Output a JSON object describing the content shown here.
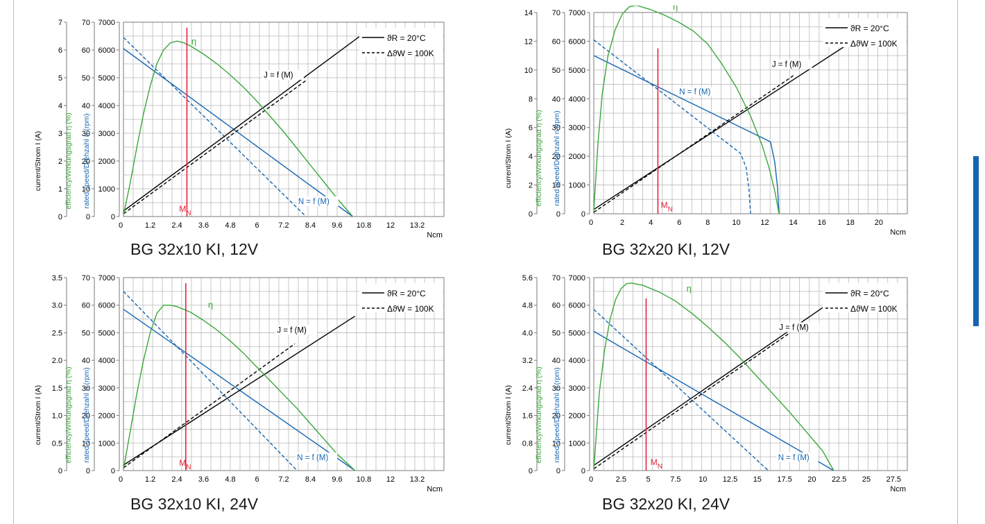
{
  "colors": {
    "current": "#000000",
    "speed": "#1565b3",
    "efficiency": "#3aa63a",
    "nominal_torque": "#e8213a",
    "grid": "#b9b9b9",
    "accent": "#1565b3"
  },
  "chart_data": [
    {
      "type": "line",
      "caption": "BG 32x10 KI, 12V",
      "xunit": "Ncm",
      "xlim": [
        0,
        14.4
      ],
      "xticks": [
        "1.2",
        "2.4",
        "3.6",
        "4.8",
        "6",
        "7.2",
        "8.4",
        "9.6",
        "10.8",
        "12",
        "13.2"
      ],
      "xtick_values": [
        1.2,
        2.4,
        3.6,
        4.8,
        6,
        7.2,
        8.4,
        9.6,
        10.8,
        12,
        13.2
      ],
      "y_current": {
        "label": "current/Strom I (A)",
        "ticks": [
          "0",
          "1",
          "2",
          "3",
          "4",
          "5",
          "6",
          "7"
        ],
        "max": 7
      },
      "y_eff": {
        "label": "efficiency/Wirkungsgrad η  (%)",
        "ticks": [
          "0",
          "10",
          "20",
          "30",
          "40",
          "50",
          "60",
          "70"
        ],
        "max": 70
      },
      "y_speed": {
        "label": "rated speed/Drehzahl n (rpm)",
        "ticks": [
          "0",
          "1000",
          "2000",
          "3000",
          "4000",
          "5000",
          "6000",
          "7000"
        ],
        "max": 7000
      },
      "legend": {
        "solid": "ϑR = 20°C",
        "dashed": "ΔϑW = 100K"
      },
      "labels": {
        "current": "J = f (M)",
        "speed": "N = f (M)",
        "efficiency": "η",
        "nominal": "MN"
      },
      "label_pos": {
        "current": [
          6.3,
          5000
        ],
        "speed": [
          7.85,
          450
        ],
        "efficiency": [
          3.05,
          6200
        ],
        "nominal": [
          2.5,
          180
        ]
      },
      "nominal_torque": {
        "x": 2.85,
        "top": 6800
      },
      "series": [
        {
          "key": "speed",
          "style": "solid",
          "points": [
            [
              0,
              6050
            ],
            [
              10.3,
              0
            ]
          ]
        },
        {
          "key": "speed",
          "style": "dashed",
          "points": [
            [
              0,
              6450
            ],
            [
              8.2,
              0
            ]
          ]
        },
        {
          "key": "current",
          "style": "solid",
          "points": [
            [
              0,
              0.2
            ],
            [
              10.8,
              6.6
            ]
          ]
        },
        {
          "key": "current",
          "style": "dashed",
          "points": [
            [
              0,
              0.1
            ],
            [
              8.2,
              4.9
            ]
          ]
        },
        {
          "key": "efficiency",
          "style": "solid",
          "points": [
            [
              0,
              0.5
            ],
            [
              0.3,
              12
            ],
            [
              0.6,
              25
            ],
            [
              0.9,
              37
            ],
            [
              1.2,
              47
            ],
            [
              1.5,
              55
            ],
            [
              1.8,
              60
            ],
            [
              2.1,
              62.5
            ],
            [
              2.4,
              63.2
            ],
            [
              2.7,
              62.6
            ],
            [
              3.0,
              61.5
            ],
            [
              3.6,
              58.5
            ],
            [
              4.2,
              55
            ],
            [
              4.8,
              51
            ],
            [
              5.4,
              46.5
            ],
            [
              6.0,
              41.5
            ],
            [
              6.6,
              36
            ],
            [
              7.2,
              30.5
            ],
            [
              7.8,
              24.5
            ],
            [
              8.4,
              18.5
            ],
            [
              9.0,
              12.5
            ],
            [
              9.6,
              6.5
            ],
            [
              10.3,
              0
            ]
          ]
        }
      ]
    },
    {
      "type": "line",
      "caption": "BG 32x20 KI, 12V",
      "xunit": "Ncm",
      "xlim": [
        0,
        22
      ],
      "xticks": [
        "2",
        "4",
        "6",
        "8",
        "10",
        "12",
        "14",
        "16",
        "18",
        "20"
      ],
      "xtick_values": [
        2,
        4,
        6,
        8,
        10,
        12,
        14,
        16,
        18,
        20
      ],
      "y_current": {
        "label": "current/Strom I (A)",
        "ticks": [
          "0",
          "2",
          "4",
          "6",
          "8",
          "10",
          "12",
          "14"
        ],
        "max": 14
      },
      "y_eff": {
        "label": "efficiency/Wirkungsgrad η  (%)",
        "ticks": [
          "0",
          "10",
          "20",
          "30",
          "40",
          "50",
          "60",
          "70"
        ],
        "max": 70
      },
      "y_speed": {
        "label": "rated speed/Drehzahl n (rpm)",
        "ticks": [
          "0",
          "1000",
          "2000",
          "3000",
          "4000",
          "5000",
          "6000",
          "7000"
        ],
        "max": 7000
      },
      "legend": {
        "solid": "ϑR = 20°C",
        "dashed": "ΔϑW = 100K"
      },
      "labels": {
        "current": "J = f (M)",
        "speed": "N = f (M)",
        "efficiency": "η",
        "nominal": "MN"
      },
      "label_pos": {
        "current": [
          12.5,
          5100
        ],
        "speed": [
          6,
          4150
        ],
        "efficiency": [
          5.55,
          7100
        ],
        "nominal": [
          4.7,
          200
        ]
      },
      "nominal_torque": {
        "x": 4.5,
        "top": 5750
      },
      "series": [
        {
          "key": "speed",
          "style": "solid",
          "points": [
            [
              0,
              5500
            ],
            [
              12.4,
              2500
            ],
            [
              12.7,
              1800
            ],
            [
              12.9,
              900
            ],
            [
              13,
              0
            ]
          ]
        },
        {
          "key": "speed",
          "style": "dashed",
          "points": [
            [
              0,
              6050
            ],
            [
              10.3,
              2100
            ],
            [
              10.7,
              1600
            ],
            [
              10.9,
              800
            ],
            [
              11,
              0
            ]
          ]
        },
        {
          "key": "current",
          "style": "solid",
          "points": [
            [
              0,
              0.3
            ],
            [
              18,
              11.9
            ]
          ]
        },
        {
          "key": "current",
          "style": "dashed",
          "points": [
            [
              0,
              0.1
            ],
            [
              14,
              9.6
            ]
          ]
        },
        {
          "key": "efficiency",
          "style": "solid",
          "points": [
            [
              0,
              1
            ],
            [
              0.3,
              25
            ],
            [
              0.6,
              42
            ],
            [
              1.0,
              55
            ],
            [
              1.5,
              64
            ],
            [
              2.0,
              69.5
            ],
            [
              2.5,
              72
            ],
            [
              3.0,
              72.5
            ],
            [
              4.0,
              71
            ],
            [
              5.0,
              69
            ],
            [
              6.0,
              66.5
            ],
            [
              7.0,
              63.5
            ],
            [
              8.0,
              59
            ],
            [
              9.0,
              52
            ],
            [
              10.0,
              44
            ],
            [
              11.0,
              34
            ],
            [
              11.8,
              24
            ],
            [
              12.3,
              16
            ],
            [
              12.7,
              8
            ],
            [
              13.0,
              0
            ]
          ]
        }
      ]
    },
    {
      "type": "line",
      "caption": "BG 32x10 KI, 24V",
      "xunit": "Ncm",
      "xlim": [
        0,
        14.4
      ],
      "xticks": [
        "1.2",
        "2.4",
        "3.6",
        "4.8",
        "6",
        "7.2",
        "8.4",
        "9.6",
        "10.8",
        "12",
        "13.2"
      ],
      "xtick_values": [
        1.2,
        2.4,
        3.6,
        4.8,
        6,
        7.2,
        8.4,
        9.6,
        10.8,
        12,
        13.2
      ],
      "y_current": {
        "label": "current/Strom I (A)",
        "ticks": [
          "0",
          "0.5",
          "1.0",
          "1.5",
          "2.0",
          "2.5",
          "3.0",
          "3.5"
        ],
        "max": 3.5
      },
      "y_eff": {
        "label": "efficiency/Wirkungsgrad η  (%)",
        "ticks": [
          "0",
          "10",
          "20",
          "30",
          "40",
          "50",
          "60",
          "70"
        ],
        "max": 70
      },
      "y_speed": {
        "label": "rated speed/Drehzahl n (rpm)",
        "ticks": [
          "0",
          "1000",
          "2000",
          "3000",
          "4000",
          "5000",
          "6000",
          "7000"
        ],
        "max": 7000
      },
      "legend": {
        "solid": "ϑR = 20°C",
        "dashed": "ΔϑW = 100K"
      },
      "labels": {
        "current": "J = f (M)",
        "speed": "N = f (M)",
        "efficiency": "η",
        "nominal": "MN"
      },
      "label_pos": {
        "current": [
          6.9,
          5000
        ],
        "speed": [
          7.8,
          380
        ],
        "efficiency": [
          3.8,
          5900
        ],
        "nominal": [
          2.5,
          180
        ]
      },
      "nominal_torque": {
        "x": 2.8,
        "top": 6800
      },
      "series": [
        {
          "key": "speed",
          "style": "solid",
          "points": [
            [
              0,
              5850
            ],
            [
              10.4,
              0
            ]
          ]
        },
        {
          "key": "speed",
          "style": "dashed",
          "points": [
            [
              0,
              6500
            ],
            [
              7.8,
              0
            ]
          ]
        },
        {
          "key": "current",
          "style": "solid",
          "points": [
            [
              0,
              0.1
            ],
            [
              10.4,
              2.8
            ]
          ]
        },
        {
          "key": "current",
          "style": "dashed",
          "points": [
            [
              0,
              0.05
            ],
            [
              7.7,
              2.3
            ]
          ]
        },
        {
          "key": "efficiency",
          "style": "solid",
          "points": [
            [
              0,
              0.5
            ],
            [
              0.3,
              14
            ],
            [
              0.6,
              28
            ],
            [
              0.9,
              40
            ],
            [
              1.2,
              50
            ],
            [
              1.5,
              57
            ],
            [
              1.8,
              60
            ],
            [
              2.1,
              60
            ],
            [
              2.4,
              59.5
            ],
            [
              3.0,
              57.5
            ],
            [
              3.6,
              54.5
            ],
            [
              4.2,
              51
            ],
            [
              4.8,
              47
            ],
            [
              5.4,
              42.5
            ],
            [
              6.0,
              37.5
            ],
            [
              6.6,
              32.5
            ],
            [
              7.2,
              27.5
            ],
            [
              7.8,
              22.5
            ],
            [
              8.4,
              17
            ],
            [
              9.0,
              11.5
            ],
            [
              9.6,
              6
            ],
            [
              10.4,
              0
            ]
          ]
        }
      ]
    },
    {
      "type": "line",
      "caption": "BG 32x20 KI, 24V",
      "xunit": "Ncm",
      "xlim": [
        0,
        28.75
      ],
      "xticks": [
        "2.5",
        "5",
        "7.5",
        "10",
        "12.5",
        "15",
        "17.5",
        "20",
        "22.5",
        "25",
        "27.5"
      ],
      "xtick_values": [
        2.5,
        5,
        7.5,
        10,
        12.5,
        15,
        17.5,
        20,
        22.5,
        25,
        27.5
      ],
      "y_current": {
        "label": "current/Strom I (A)",
        "ticks": [
          "0",
          "0.8",
          "1.6",
          "2.4",
          "3.2",
          "4.0",
          "4.8",
          "5.6"
        ],
        "max": 5.6
      },
      "y_eff": {
        "label": "efficiency/Wirkungsgrad η  (%)",
        "ticks": [
          "0",
          "10",
          "20",
          "30",
          "40",
          "50",
          "60",
          "70"
        ],
        "max": 70
      },
      "y_speed": {
        "label": "rated speed/Drehzahl n (rpm)",
        "ticks": [
          "0",
          "1000",
          "2000",
          "3000",
          "4000",
          "5000",
          "6000",
          "7000"
        ],
        "max": 7000
      },
      "legend": {
        "solid": "ϑR = 20°C",
        "dashed": "ΔϑW = 100K"
      },
      "labels": {
        "current": "J = f (M)",
        "speed": "N = f (M)",
        "efficiency": "η",
        "nominal": "MN"
      },
      "label_pos": {
        "current": [
          17,
          5100
        ],
        "speed": [
          16.9,
          380
        ],
        "efficiency": [
          8.5,
          6500
        ],
        "nominal": [
          5.2,
          200
        ]
      },
      "nominal_torque": {
        "x": 4.8,
        "top": 6250
      },
      "series": [
        {
          "key": "speed",
          "style": "solid",
          "points": [
            [
              0,
              5050
            ],
            [
              22,
              0
            ]
          ]
        },
        {
          "key": "speed",
          "style": "dashed",
          "points": [
            [
              0,
              5850
            ],
            [
              16,
              0
            ]
          ]
        },
        {
          "key": "current",
          "style": "solid",
          "points": [
            [
              0,
              0.15
            ],
            [
              22,
              4.95
            ]
          ]
        },
        {
          "key": "current",
          "style": "dashed",
          "points": [
            [
              0,
              0.05
            ],
            [
              18,
              4.0
            ]
          ]
        },
        {
          "key": "efficiency",
          "style": "solid",
          "points": [
            [
              0,
              0.5
            ],
            [
              0.5,
              28
            ],
            [
              1.0,
              44
            ],
            [
              1.5,
              55
            ],
            [
              2.0,
              62
            ],
            [
              2.5,
              66
            ],
            [
              3.0,
              67.8
            ],
            [
              3.5,
              68
            ],
            [
              4.5,
              67.2
            ],
            [
              6.0,
              64.8
            ],
            [
              7.5,
              61.5
            ],
            [
              9.0,
              57
            ],
            [
              10.5,
              52
            ],
            [
              12.0,
              46.5
            ],
            [
              13.5,
              40.5
            ],
            [
              15.0,
              34
            ],
            [
              16.5,
              27.5
            ],
            [
              18.0,
              21
            ],
            [
              19.5,
              14
            ],
            [
              21.0,
              7
            ],
            [
              22.0,
              0
            ]
          ]
        }
      ]
    }
  ]
}
